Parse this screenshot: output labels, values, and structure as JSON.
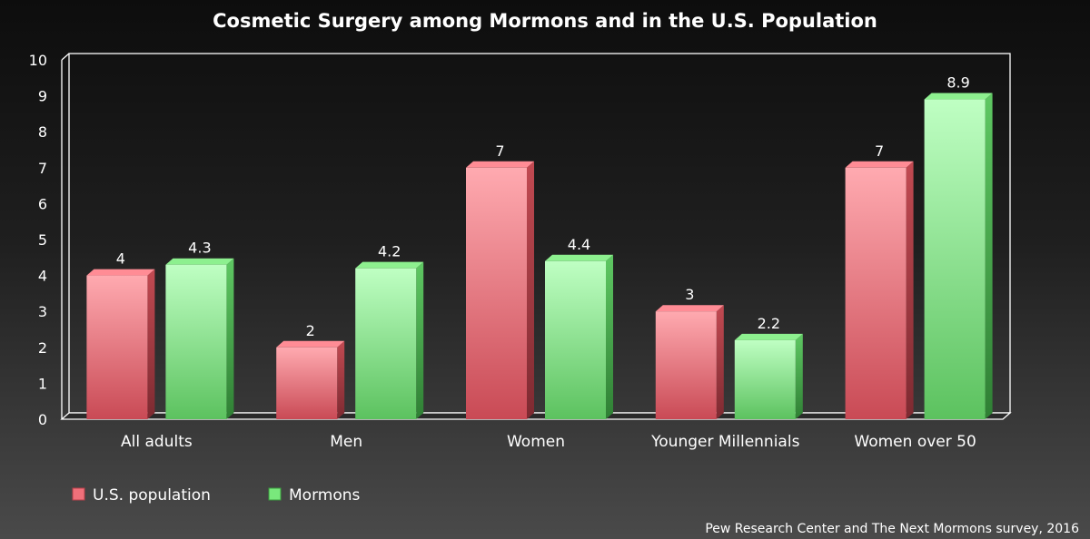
{
  "chart_data": {
    "type": "bar",
    "title": "Cosmetic Surgery among Mormons and in the U.S. Population",
    "categories": [
      "All adults",
      "Men",
      "Women",
      "Younger Millennials",
      "Women over 50"
    ],
    "series": [
      {
        "name": "U.S. population",
        "values": [
          4,
          2,
          7,
          3,
          7
        ],
        "labels": [
          "4",
          "2",
          "7",
          "3",
          "7"
        ],
        "color": "#e8606a"
      },
      {
        "name": "Mormons",
        "values": [
          4.3,
          4.2,
          4.4,
          2.2,
          8.9
        ],
        "labels": [
          "4.3",
          "4.2",
          "4.4",
          "2.2",
          "8.9"
        ],
        "color": "#63d46a"
      }
    ],
    "yticks": [
      "0",
      "1",
      "2",
      "3",
      "4",
      "5",
      "6",
      "7",
      "8",
      "9",
      "10"
    ],
    "ylim": [
      0,
      10
    ],
    "xlabel": "",
    "ylabel": "",
    "legend_position": "bottom-left",
    "source": "Pew Research Center and The Next Mormons survey, 2016"
  }
}
